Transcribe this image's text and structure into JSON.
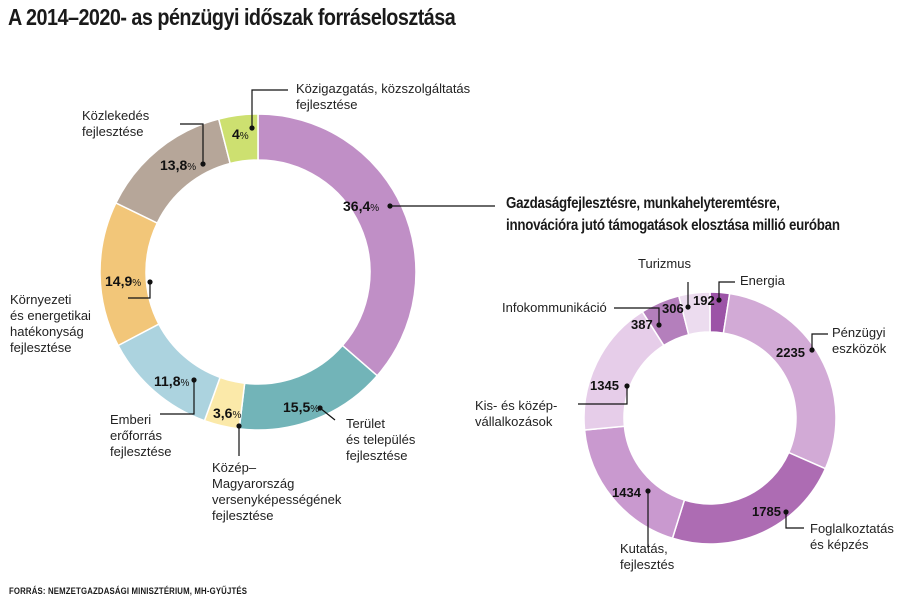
{
  "title": "A 2014–2020- as pénzügyi időszak forráselosztása",
  "source": "FORRÁS: NEMZETGAZDASÁGI MINISZTÉRIUM, MH-GYŰJTÉS",
  "chart_data": [
    {
      "type": "pie",
      "title": "A 2014–2020- as pénzügyi időszak forráselosztása",
      "unit": "%",
      "slices": [
        {
          "label": [
            "Gazdaságfejlesztésre, munkahelyteremtésre,",
            "innovációra jutó támogatások elosztása millió euróban"
          ],
          "value": 36.4,
          "display": "36,4",
          "color": "#c08fc6"
        },
        {
          "label": [
            "Terület",
            "és település",
            "fejlesztése"
          ],
          "value": 15.5,
          "display": "15,5",
          "color": "#72b4b8"
        },
        {
          "label": [
            "Közép–",
            "Magyarország",
            "versenyképességének",
            "fejlesztése"
          ],
          "value": 3.6,
          "display": "3,6",
          "color": "#fbe9a9"
        },
        {
          "label": [
            "Emberi",
            "erőforrás",
            "fejlesztése"
          ],
          "value": 11.8,
          "display": "11,8",
          "color": "#acd3df"
        },
        {
          "label": [
            "Környezeti",
            "és energetikai",
            "hatékonyság",
            "fejlesztése"
          ],
          "value": 14.9,
          "display": "14,9",
          "color": "#f2c679"
        },
        {
          "label": [
            "Közlekedés",
            "fejlesztése"
          ],
          "value": 13.8,
          "display": "13,8",
          "color": "#b6a699"
        },
        {
          "label": [
            "Közigazgatás, közszolgáltatás",
            "fejlesztése"
          ],
          "value": 4.0,
          "display": "4",
          "color": "#cde070"
        }
      ]
    },
    {
      "type": "pie",
      "title": "Gazdaságfejlesztésre, munkahelyteremtésre, innovációra jutó támogatások elosztása millió euróban",
      "unit": "millió euró",
      "slices": [
        {
          "label": [
            "Energia"
          ],
          "value": 192,
          "color": "#9c54a7"
        },
        {
          "label": [
            "Pénzügyi",
            "eszközök"
          ],
          "value": 2235,
          "color": "#d2aad6"
        },
        {
          "label": [
            "Foglalkoztatás",
            "és képzés"
          ],
          "value": 1785,
          "color": "#ad6cb3"
        },
        {
          "label": [
            "Kutatás,",
            "fejlesztés"
          ],
          "value": 1434,
          "color": "#c999cf"
        },
        {
          "label": [
            "Kis- és közép-",
            "vállalkozások"
          ],
          "value": 1345,
          "color": "#e6cde9"
        },
        {
          "label": [
            "Infokommunikáció"
          ],
          "value": 387,
          "color": "#b47fbc"
        },
        {
          "label": [
            "Turizmus"
          ],
          "value": 306,
          "color": "#ecdcef"
        }
      ]
    }
  ]
}
